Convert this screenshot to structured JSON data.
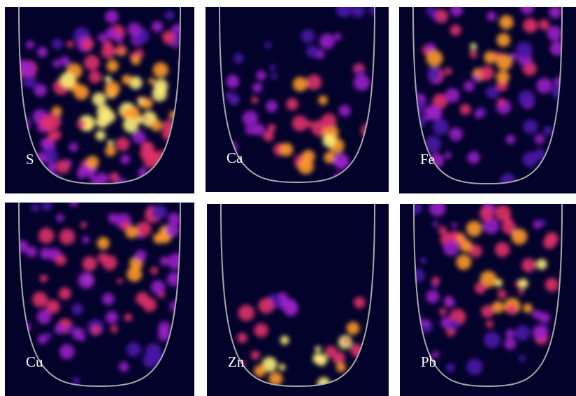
{
  "panels": [
    {
      "label": "S"
    },
    {
      "label": "Ca"
    },
    {
      "label": "Fe"
    },
    {
      "label": "Cu"
    },
    {
      "label": "Zn"
    },
    {
      "label": "Pb"
    }
  ]
}
